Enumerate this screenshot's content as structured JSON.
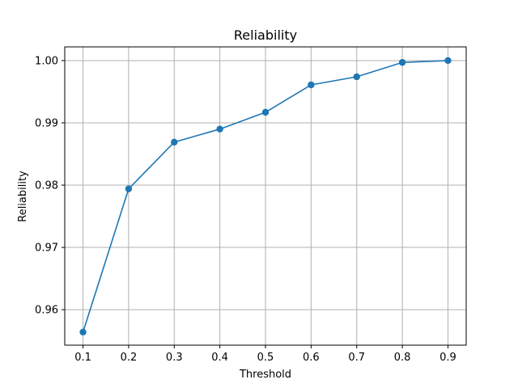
{
  "chart_data": {
    "type": "line",
    "title": "Reliability",
    "xlabel": "Threshold",
    "ylabel": "Reliability",
    "x": [
      0.1,
      0.2,
      0.3,
      0.4,
      0.5,
      0.6,
      0.7,
      0.8,
      0.9
    ],
    "series": [
      {
        "values": [
          0.9564,
          0.9794,
          0.9869,
          0.989,
          0.9917,
          0.9961,
          0.9974,
          0.9997,
          1.0
        ],
        "color": "#1f77b4",
        "marker": "circle"
      }
    ],
    "xticks": [
      "0.1",
      "0.2",
      "0.3",
      "0.4",
      "0.5",
      "0.6",
      "0.7",
      "0.8",
      "0.9"
    ],
    "yticks": [
      "0.96",
      "0.97",
      "0.98",
      "0.99",
      "1.00"
    ],
    "xlim": [
      0.06,
      0.94
    ],
    "ylim": [
      0.9543,
      1.0022
    ],
    "grid": true,
    "grid_color": "#b0b0b0"
  }
}
